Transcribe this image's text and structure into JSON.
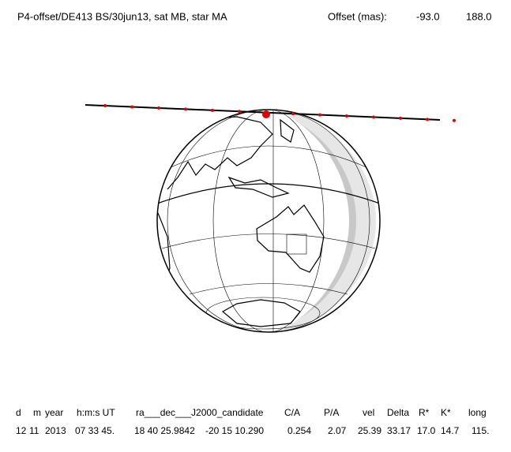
{
  "header": {
    "title": "P4-offset/DE413 BS/30jun13, sat MB, star MA",
    "offset_label": "Offset (mas):",
    "offset_values": [
      "-93.0",
      "188.0"
    ]
  },
  "table": {
    "columns": [
      "d",
      "m",
      "year",
      "h:m:s UT",
      "ra___dec___J2000_candidate",
      "C/A",
      "P/A",
      "vel",
      "Delta",
      "R*",
      "K*",
      "long"
    ],
    "rows": [
      [
        "12",
        "11",
        "2013",
        "07 33 45.",
        "18 40 25.9842",
        "-20 15 10.290",
        "0.254",
        "2.07",
        "25.39",
        "33.17",
        "17.0",
        "14.7",
        "115."
      ]
    ]
  }
}
